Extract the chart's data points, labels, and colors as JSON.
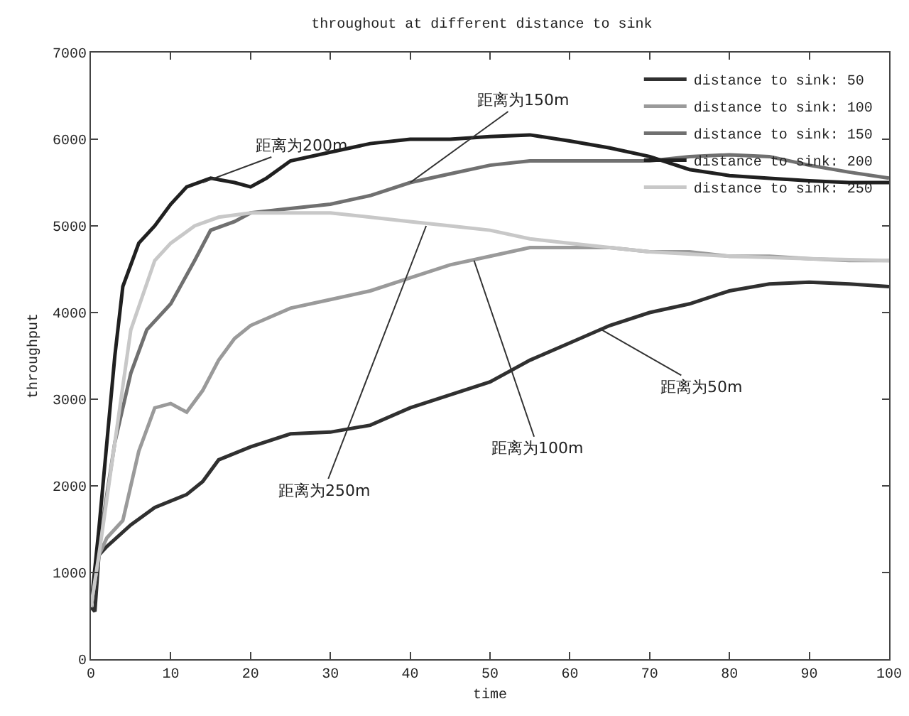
{
  "chart_data": {
    "type": "line",
    "title": "throughout at different distance to sink",
    "xlabel": "time",
    "ylabel": "throughput",
    "xlim": [
      0,
      100
    ],
    "xticks": [
      0,
      10,
      20,
      30,
      40,
      50,
      60,
      70,
      80,
      90,
      100
    ],
    "ylim": [
      0,
      7000
    ],
    "yticks": [
      0,
      1000,
      2000,
      3000,
      4000,
      5000,
      6000,
      7000
    ],
    "grid": false,
    "legend": "top right",
    "marker": "none",
    "line_style": "solid",
    "series": [
      {
        "name": "distance to sink: 50",
        "color": "#303030",
        "x": [
          0,
          0.5,
          1,
          2,
          5,
          8,
          12,
          14,
          16,
          20,
          25,
          30,
          35,
          40,
          45,
          50,
          55,
          60,
          65,
          70,
          75,
          80,
          85,
          90,
          95,
          100
        ],
        "values": [
          600,
          550,
          1200,
          1300,
          1550,
          1750,
          1900,
          2050,
          2300,
          2450,
          2600,
          2620,
          2700,
          2900,
          3050,
          3200,
          3450,
          3650,
          3850,
          4000,
          4100,
          4250,
          4330,
          4350,
          4330,
          4300
        ]
      },
      {
        "name": "distance to sink: 100",
        "color": "#9a9a9a",
        "x": [
          0,
          1,
          2,
          4,
          6,
          8,
          10,
          12,
          14,
          16,
          18,
          20,
          25,
          30,
          35,
          40,
          45,
          50,
          55,
          60,
          65,
          70,
          75,
          80,
          85,
          90,
          95,
          100
        ],
        "values": [
          600,
          1200,
          1400,
          1600,
          2400,
          2900,
          2950,
          2850,
          3100,
          3450,
          3700,
          3850,
          4050,
          4150,
          4250,
          4400,
          4550,
          4650,
          4750,
          4750,
          4750,
          4700,
          4700,
          4650,
          4650,
          4620,
          4600,
          4600
        ]
      },
      {
        "name": "distance to sink: 150",
        "color": "#707070",
        "x": [
          0,
          1,
          3,
          5,
          7,
          10,
          13,
          15,
          18,
          20,
          25,
          30,
          35,
          40,
          45,
          50,
          55,
          60,
          65,
          70,
          75,
          80,
          85,
          90,
          95,
          100
        ],
        "values": [
          600,
          1300,
          2500,
          3300,
          3800,
          4100,
          4600,
          4950,
          5050,
          5150,
          5200,
          5250,
          5350,
          5500,
          5600,
          5700,
          5750,
          5750,
          5750,
          5750,
          5800,
          5820,
          5800,
          5700,
          5620,
          5550
        ]
      },
      {
        "name": "distance to sink: 200",
        "color": "#202020",
        "x": [
          0,
          1,
          3,
          4,
          6,
          8,
          10,
          12,
          15,
          18,
          20,
          22,
          25,
          30,
          35,
          40,
          45,
          50,
          55,
          60,
          65,
          70,
          75,
          80,
          85,
          90,
          95,
          100
        ],
        "values": [
          600,
          1500,
          3500,
          4300,
          4800,
          5000,
          5250,
          5450,
          5550,
          5500,
          5450,
          5550,
          5750,
          5850,
          5950,
          6000,
          6000,
          6030,
          6050,
          5980,
          5900,
          5800,
          5650,
          5580,
          5550,
          5520,
          5500,
          5500
        ]
      },
      {
        "name": "distance to sink: 250",
        "color": "#c8c8c8",
        "x": [
          0,
          1,
          3,
          5,
          8,
          10,
          13,
          16,
          20,
          25,
          30,
          35,
          40,
          45,
          50,
          55,
          60,
          65,
          70,
          80,
          90,
          100
        ],
        "values": [
          600,
          1200,
          2500,
          3800,
          4600,
          4800,
          5000,
          5100,
          5150,
          5150,
          5150,
          5100,
          5050,
          5000,
          4950,
          4850,
          4800,
          4750,
          4700,
          4650,
          4620,
          4600
        ]
      }
    ],
    "annotations": [
      {
        "text": "距离为200m",
        "x": 14,
        "y": 5500
      },
      {
        "text": "距离为150m",
        "x": 40,
        "y": 5500
      },
      {
        "text": "距离为250m",
        "x": 42,
        "y": 5000
      },
      {
        "text": "距离为100m",
        "x": 48,
        "y": 4600
      },
      {
        "text": "距离为50m",
        "x": 64,
        "y": 3800
      }
    ]
  }
}
